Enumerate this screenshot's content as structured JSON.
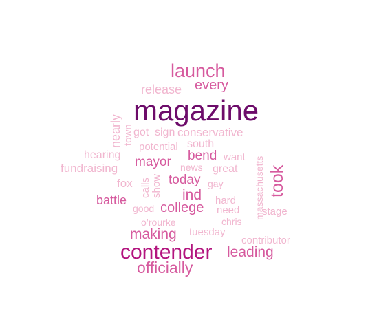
{
  "palette": {
    "darkest": "#6d0c6a",
    "dark": "#b3157f",
    "medium": "#d65a9e",
    "light": "#e48fb9",
    "lightest": "#f1b6cf"
  },
  "words": [
    {
      "text": "magazine",
      "tone": "darkest"
    },
    {
      "text": "launch",
      "tone": "medium"
    },
    {
      "text": "every",
      "tone": "medium"
    },
    {
      "text": "release",
      "tone": "lightest"
    },
    {
      "text": "contender",
      "tone": "dark"
    },
    {
      "text": "officially",
      "tone": "medium"
    },
    {
      "text": "leading",
      "tone": "medium"
    },
    {
      "text": "took",
      "tone": "medium"
    },
    {
      "text": "making",
      "tone": "medium"
    },
    {
      "text": "college",
      "tone": "medium"
    },
    {
      "text": "ind",
      "tone": "medium"
    },
    {
      "text": "today",
      "tone": "medium"
    },
    {
      "text": "bend",
      "tone": "medium"
    },
    {
      "text": "mayor",
      "tone": "medium"
    },
    {
      "text": "battle",
      "tone": "medium"
    },
    {
      "text": "conservative",
      "tone": "lightest"
    },
    {
      "text": "sign",
      "tone": "lightest"
    },
    {
      "text": "got",
      "tone": "lightest"
    },
    {
      "text": "nearly",
      "tone": "lightest"
    },
    {
      "text": "town",
      "tone": "lightest"
    },
    {
      "text": "potential",
      "tone": "lightest"
    },
    {
      "text": "south",
      "tone": "lightest"
    },
    {
      "text": "hearing",
      "tone": "lightest"
    },
    {
      "text": "want",
      "tone": "lightest"
    },
    {
      "text": "fundraising",
      "tone": "lightest"
    },
    {
      "text": "news",
      "tone": "lightest"
    },
    {
      "text": "great",
      "tone": "lightest"
    },
    {
      "text": "massachusetts",
      "tone": "lightest"
    },
    {
      "text": "fox",
      "tone": "lightest"
    },
    {
      "text": "calls",
      "tone": "lightest"
    },
    {
      "text": "show",
      "tone": "lightest"
    },
    {
      "text": "gay",
      "tone": "lightest"
    },
    {
      "text": "good",
      "tone": "lightest"
    },
    {
      "text": "hard",
      "tone": "lightest"
    },
    {
      "text": "need",
      "tone": "lightest"
    },
    {
      "text": "stage",
      "tone": "lightest"
    },
    {
      "text": "o’rourke",
      "tone": "lightest"
    },
    {
      "text": "chris",
      "tone": "lightest"
    },
    {
      "text": "tuesday",
      "tone": "lightest"
    },
    {
      "text": "contributor",
      "tone": "lightest"
    }
  ]
}
